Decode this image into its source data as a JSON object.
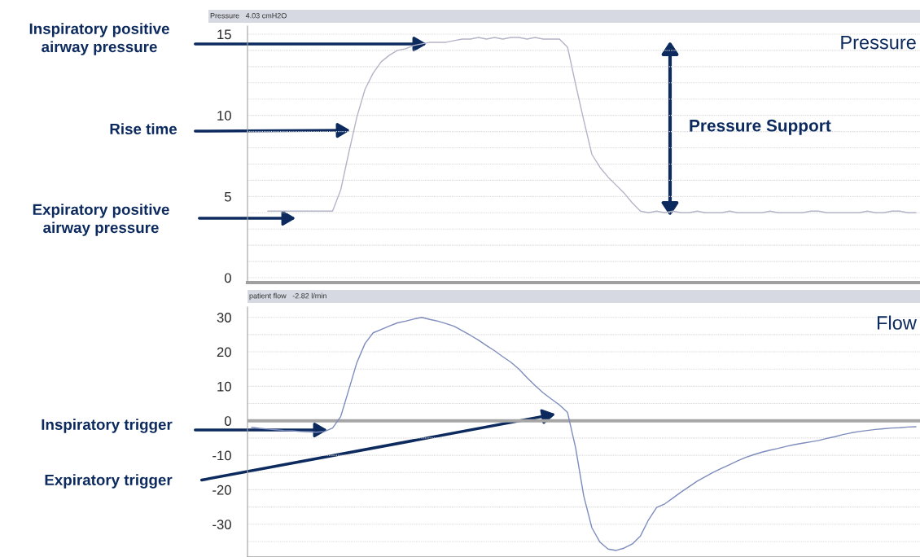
{
  "chart_data": [
    {
      "type": "line",
      "title": "Pressure",
      "subtitle": "Pressure   4.03 cmH2O",
      "categories": [
        null,
        null,
        null,
        null,
        null,
        null,
        null,
        null,
        null,
        null,
        null,
        null,
        null,
        null,
        null,
        null,
        null,
        null,
        null,
        null,
        null,
        null,
        null,
        null,
        null,
        null,
        null,
        null,
        null,
        null,
        null,
        null,
        null,
        null,
        null,
        null,
        null,
        null,
        null,
        null,
        null,
        null,
        null,
        null,
        null,
        null,
        null,
        null,
        null,
        null,
        null,
        null,
        null,
        null,
        null,
        null,
        null,
        null,
        null,
        null,
        null,
        null,
        null,
        null,
        null,
        null,
        null,
        null,
        null,
        null,
        null,
        null,
        null,
        null,
        null,
        null,
        null,
        null,
        null,
        null,
        null,
        null,
        null
      ],
      "series": [
        {
          "color": "#b4b4c8",
          "values": [
            null,
            null,
            4.1,
            4.1,
            4.1,
            4.1,
            4.1,
            4.1,
            4.1,
            4.1,
            4.1,
            5.4,
            7.7,
            9.9,
            11.6,
            12.6,
            13.3,
            13.7,
            14.0,
            14.1,
            14.3,
            14.4,
            14.5,
            14.5,
            14.5,
            14.6,
            14.7,
            14.7,
            14.8,
            14.7,
            14.8,
            14.7,
            14.8,
            14.8,
            14.7,
            14.8,
            14.7,
            14.7,
            14.7,
            14.2,
            11.9,
            9.7,
            7.6,
            6.8,
            6.2,
            5.7,
            5.2,
            4.6,
            4.1,
            4.0,
            4.1,
            4.0,
            4.1,
            4.0,
            4.0,
            4.1,
            4.0,
            4.0,
            4.0,
            4.1,
            4.0,
            4.0,
            4.0,
            4.0,
            4.1,
            4.0,
            4.0,
            4.0,
            4.0,
            4.1,
            4.1,
            4.0,
            4.0,
            4.0,
            4.0,
            4.0,
            4.1,
            4.0,
            4.0,
            4.1,
            4.1,
            4.0,
            4.0
          ]
        }
      ],
      "ylim": [
        -0.3,
        15.5
      ],
      "yticks": [
        0,
        {
          "value": 1,
          "label": null
        },
        {
          "value": 2,
          "label": null
        },
        {
          "value": 3,
          "label": null
        },
        {
          "value": 4,
          "label": null
        },
        5,
        {
          "value": 6,
          "label": null
        },
        {
          "value": 7,
          "label": null
        },
        {
          "value": 8,
          "label": null
        },
        {
          "value": 9,
          "label": null
        },
        10,
        {
          "value": 11,
          "label": null
        },
        {
          "value": 12,
          "label": null
        },
        {
          "value": 13,
          "label": null
        },
        {
          "value": 14,
          "label": null
        },
        15
      ],
      "tick_labels": "y",
      "grid": "y",
      "annotations": [
        "Inspiratory positive\nairway pressure",
        "Rise time",
        "Expiratory positive\nairway pressure",
        "Pressure Support"
      ]
    },
    {
      "type": "line",
      "title": "Flow",
      "subtitle": "patient flow   -2.82 l/min",
      "categories": [
        null,
        null,
        null,
        null,
        null,
        null,
        null,
        null,
        null,
        null,
        null,
        null,
        null,
        null,
        null,
        null,
        null,
        null,
        null,
        null,
        null,
        null,
        null,
        null,
        null,
        null,
        null,
        null,
        null,
        null,
        null,
        null,
        null,
        null,
        null,
        null,
        null,
        null,
        null,
        null,
        null,
        null,
        null,
        null,
        null,
        null,
        null,
        null,
        null,
        null,
        null,
        null,
        null,
        null,
        null,
        null,
        null,
        null,
        null,
        null,
        null,
        null,
        null,
        null,
        null,
        null,
        null,
        null,
        null,
        null,
        null,
        null,
        null,
        null,
        null,
        null,
        null,
        null,
        null,
        null,
        null,
        null,
        null
      ],
      "series": [
        {
          "color": "#7d8cbc",
          "values": [
            -1.9,
            -2.2,
            -2.4,
            -2.6,
            -2.8,
            -2.9,
            -3.1,
            -3.2,
            -3.3,
            -3.1,
            -2.1,
            1.2,
            9.0,
            16.9,
            22.4,
            25.5,
            26.5,
            27.5,
            28.4,
            28.9,
            29.5,
            30.0,
            29.4,
            28.9,
            28.2,
            27.4,
            26.1,
            24.8,
            23.4,
            21.8,
            20.3,
            18.6,
            17.0,
            15.0,
            12.5,
            10.2,
            8.1,
            6.3,
            4.6,
            2.4,
            -7.9,
            -21.8,
            -31.0,
            -35.2,
            -37.2,
            -37.6,
            -36.9,
            -35.7,
            -33.4,
            -28.7,
            -25.1,
            -24.1,
            -22.4,
            -20.7,
            -19.1,
            -17.5,
            -16.2,
            -14.9,
            -13.8,
            -12.7,
            -11.6,
            -10.6,
            -9.8,
            -9.1,
            -8.5,
            -8.0,
            -7.4,
            -6.9,
            -6.5,
            -6.1,
            -5.7,
            -5.1,
            -4.6,
            -4.0,
            -3.5,
            -3.1,
            -2.8,
            -2.5,
            -2.3,
            -2.1,
            -2.0,
            -1.8,
            -1.7
          ]
        }
      ],
      "ylim": [
        -39.5,
        33
      ],
      "yticks": [
        -30,
        {
          "value": -35,
          "label": null
        },
        -20,
        {
          "value": -25,
          "label": null
        },
        -10,
        {
          "value": -15,
          "label": null
        },
        0,
        {
          "value": -5,
          "label": null
        },
        10,
        {
          "value": 5,
          "label": null
        },
        20,
        {
          "value": 15,
          "label": null
        },
        30,
        {
          "value": 25,
          "label": null
        }
      ],
      "tick_labels": "y",
      "grid": "y",
      "ref_lines": [
        {
          "axis": "y",
          "value": 0,
          "color": "#a6a6a6"
        }
      ],
      "annotations": [
        "Inspiratory trigger",
        "Expiratory trigger"
      ]
    }
  ]
}
